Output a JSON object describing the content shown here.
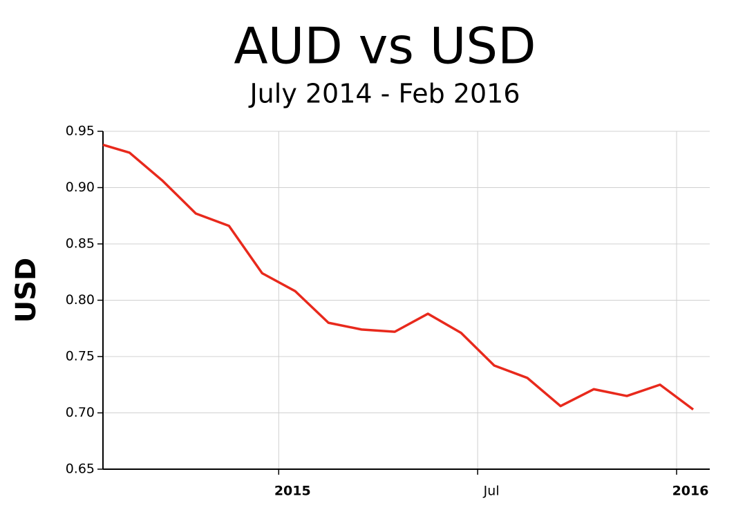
{
  "chart_data": {
    "type": "line",
    "title": "AUD vs USD",
    "subtitle": "July 2014 - Feb 2016",
    "y_label": "USD",
    "x": [
      -5.3,
      -4.5,
      -3.5,
      -2.5,
      -1.5,
      -0.5,
      0.5,
      1.5,
      2.5,
      3.5,
      4.5,
      5.5,
      6.5,
      7.5,
      8.5,
      9.5,
      10.5,
      11.5,
      12.5
    ],
    "series": [
      {
        "name": "AUD",
        "color": "#e8291c",
        "values": [
          0.938,
          0.931,
          0.906,
          0.877,
          0.866,
          0.824,
          0.808,
          0.78,
          0.774,
          0.772,
          0.788,
          0.771,
          0.742,
          0.731,
          0.706,
          0.721,
          0.715,
          0.725,
          0.703
        ]
      }
    ],
    "xlim": [
      -5.3,
      13
    ],
    "xticks": [
      {
        "value": 0,
        "label": "2015"
      },
      {
        "value": 6,
        "label": "Jul"
      },
      {
        "value": 12,
        "label": "2016"
      }
    ],
    "ylim": [
      0.65,
      0.95
    ],
    "yticks": [
      {
        "value": 0.65,
        "label": "0.65"
      },
      {
        "value": 0.7,
        "label": "0.70"
      },
      {
        "value": 0.75,
        "label": "0.75"
      },
      {
        "value": 0.8,
        "label": "0.80"
      },
      {
        "value": 0.85,
        "label": "0.85"
      },
      {
        "value": 0.9,
        "label": "0.90"
      },
      {
        "value": 0.95,
        "label": "0.95"
      }
    ],
    "grid": true
  }
}
